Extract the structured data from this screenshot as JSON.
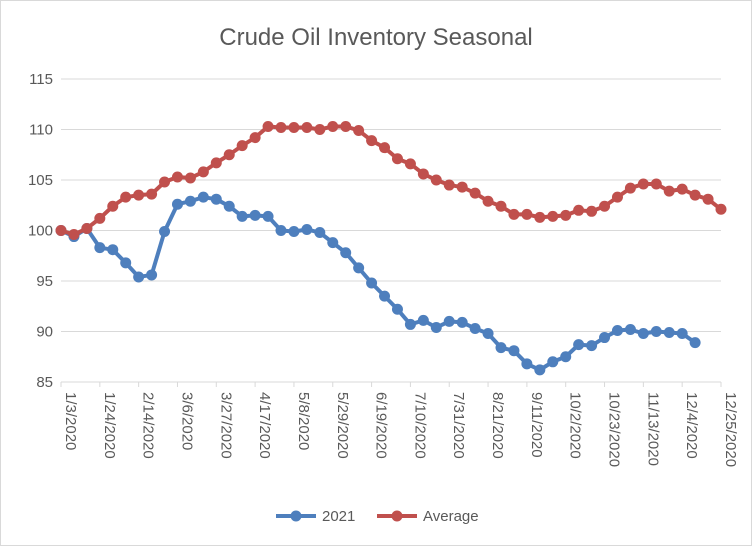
{
  "chart_data": {
    "type": "line",
    "title": "Crude Oil Inventory Seasonal",
    "xlabel": "",
    "ylabel": "",
    "ylim": [
      85,
      115
    ],
    "yticks": [
      85,
      90,
      95,
      100,
      105,
      110,
      115
    ],
    "grid": true,
    "legend": "bottom",
    "x_tick_labels": [
      "1/3/2020",
      "1/24/2020",
      "2/14/2020",
      "3/6/2020",
      "3/27/2020",
      "4/17/2020",
      "5/8/2020",
      "5/29/2020",
      "6/19/2020",
      "7/10/2020",
      "7/31/2020",
      "8/21/2020",
      "9/11/2020",
      "10/2/2020",
      "10/23/2020",
      "11/13/2020",
      "12/4/2020",
      "12/25/2020"
    ],
    "x_count": 52,
    "series": [
      {
        "name": "2021",
        "color": "#4e7fbd",
        "values": [
          100,
          99.4,
          100.2,
          98.3,
          98.1,
          96.8,
          95.4,
          95.6,
          99.9,
          102.6,
          102.9,
          103.3,
          103.1,
          102.4,
          101.4,
          101.5,
          101.4,
          100.0,
          99.9,
          100.1,
          99.8,
          98.8,
          97.8,
          96.3,
          94.8,
          93.5,
          92.2,
          90.7,
          91.1,
          90.4,
          91.0,
          90.9,
          90.3,
          89.8,
          88.4,
          88.1,
          86.8,
          86.2,
          87.0,
          87.5,
          88.7,
          88.6,
          89.4,
          90.1,
          90.2,
          89.8,
          90.0,
          89.9,
          89.8,
          88.9
        ]
      },
      {
        "name": "Average",
        "color": "#c0504d",
        "values": [
          100,
          99.6,
          100.2,
          101.2,
          102.4,
          103.3,
          103.5,
          103.6,
          104.8,
          105.3,
          105.2,
          105.8,
          106.7,
          107.5,
          108.4,
          109.2,
          110.3,
          110.2,
          110.2,
          110.2,
          110.0,
          110.3,
          110.3,
          109.9,
          108.9,
          108.2,
          107.1,
          106.6,
          105.6,
          105.0,
          104.5,
          104.3,
          103.7,
          102.9,
          102.4,
          101.6,
          101.6,
          101.3,
          101.4,
          101.5,
          102.0,
          101.9,
          102.4,
          103.3,
          104.2,
          104.6,
          104.6,
          103.9,
          104.1,
          103.5,
          103.1,
          102.1
        ]
      }
    ]
  }
}
